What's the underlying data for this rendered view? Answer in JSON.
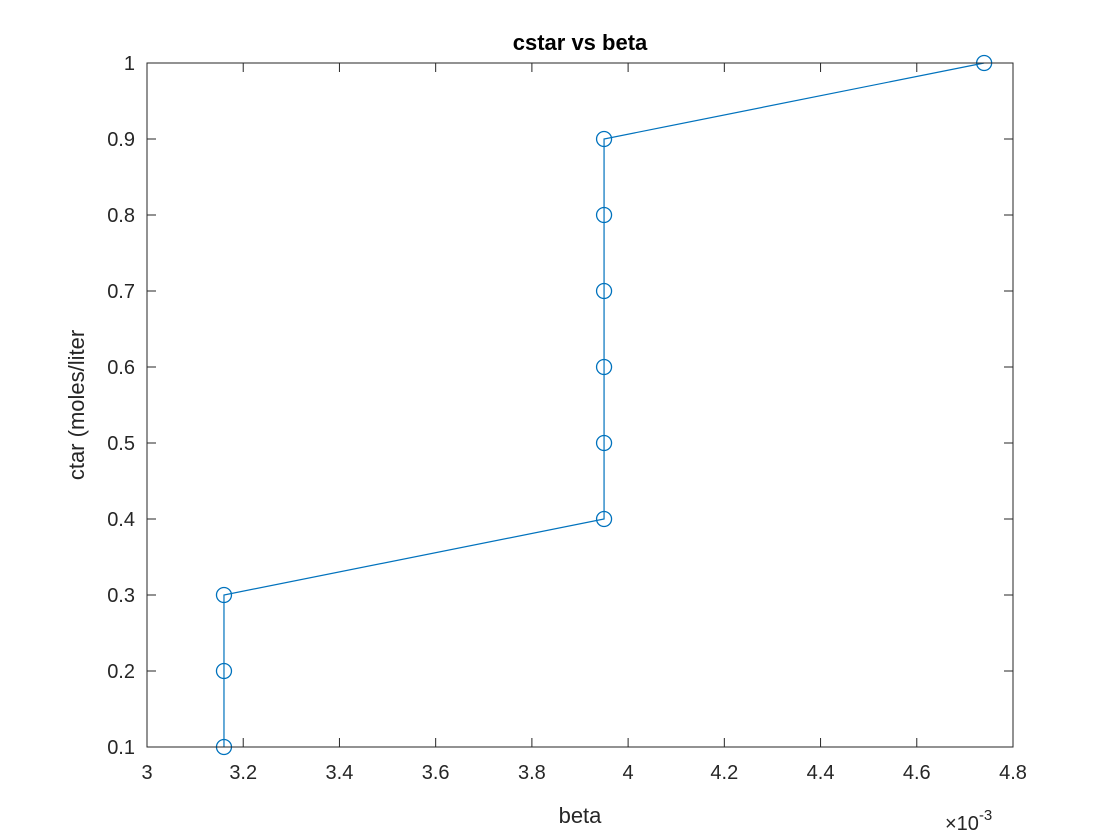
{
  "chart_data": {
    "type": "line",
    "title": "cstar vs beta",
    "xlabel": "beta",
    "ylabel": "ctar (moles/liter",
    "x_exponent_base": "×10",
    "x_exponent_power": "-3",
    "xlim": [
      3,
      4.8
    ],
    "ylim": [
      0.1,
      1
    ],
    "x_ticks": [
      3,
      3.2,
      3.4,
      3.6,
      3.8,
      4,
      4.2,
      4.4,
      4.6,
      4.8
    ],
    "x_tick_labels": [
      "3",
      "3.2",
      "3.4",
      "3.6",
      "3.8",
      "4",
      "4.2",
      "4.4",
      "4.6",
      "4.8"
    ],
    "y_ticks": [
      0.1,
      0.2,
      0.3,
      0.4,
      0.5,
      0.6,
      0.7,
      0.8,
      0.9,
      1
    ],
    "y_tick_labels": [
      "0.1",
      "0.2",
      "0.3",
      "0.4",
      "0.5",
      "0.6",
      "0.7",
      "0.8",
      "0.9",
      "1"
    ],
    "grid": false,
    "marker": "circle",
    "series": [
      {
        "color": "#0072BD",
        "points": [
          {
            "x": 3.16,
            "y": 0.1
          },
          {
            "x": 3.16,
            "y": 0.2
          },
          {
            "x": 3.16,
            "y": 0.3
          },
          {
            "x": 3.95,
            "y": 0.4
          },
          {
            "x": 3.95,
            "y": 0.5
          },
          {
            "x": 3.95,
            "y": 0.6
          },
          {
            "x": 3.95,
            "y": 0.7
          },
          {
            "x": 3.95,
            "y": 0.8
          },
          {
            "x": 3.95,
            "y": 0.9
          },
          {
            "x": 4.74,
            "y": 1.0
          }
        ]
      }
    ]
  }
}
